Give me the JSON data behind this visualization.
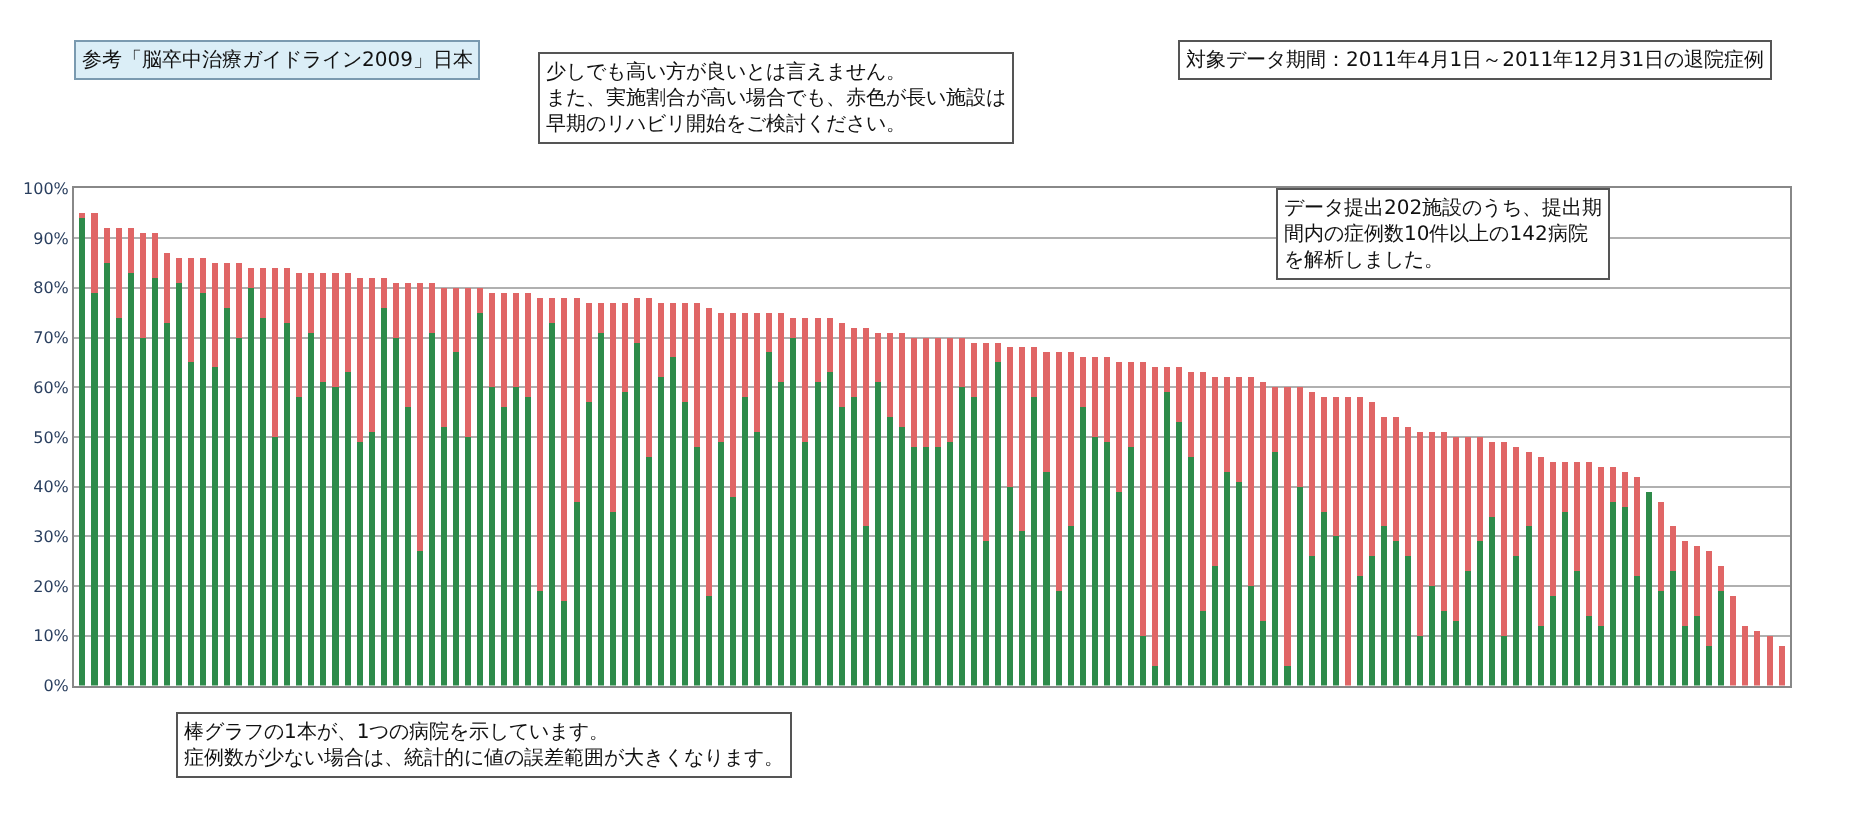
{
  "chart_data": {
    "type": "bar",
    "stacked": true,
    "categories": [
      null,
      null,
      null,
      null,
      null,
      null,
      null,
      null,
      null,
      null,
      null,
      null,
      null,
      null,
      null,
      null,
      null,
      null,
      null,
      null,
      null,
      null,
      null,
      null,
      null,
      null,
      null,
      null,
      null,
      null,
      null,
      null,
      null,
      null,
      null,
      null,
      null,
      null,
      null,
      null,
      null,
      null,
      null,
      null,
      null,
      null,
      null,
      null,
      null,
      null,
      null,
      null,
      null,
      null,
      null,
      null,
      null,
      null,
      null,
      null,
      null,
      null,
      null,
      null,
      null,
      null,
      null,
      null,
      null,
      null,
      null,
      null,
      null,
      null,
      null,
      null,
      null,
      null,
      null,
      null,
      null,
      null,
      null,
      null,
      null,
      null,
      null,
      null,
      null,
      null,
      null,
      null,
      null,
      null,
      null,
      null,
      null,
      null,
      null,
      null,
      null,
      null,
      null,
      null,
      null,
      null,
      null,
      null,
      null,
      null,
      null,
      null,
      null,
      null,
      null,
      null,
      null,
      null,
      null,
      null,
      null,
      null,
      null,
      null,
      null,
      null,
      null,
      null,
      null,
      null,
      null,
      null,
      null,
      null,
      null,
      null,
      null,
      null,
      null,
      null,
      null,
      null
    ],
    "series": [
      {
        "color": "#2e8b4a",
        "values": [
          94,
          79,
          85,
          74,
          83,
          70,
          82,
          73,
          81,
          65,
          79,
          64,
          76,
          70,
          80,
          74,
          50,
          73,
          58,
          71,
          61,
          60,
          63,
          49,
          51,
          76,
          70,
          56,
          27,
          71,
          52,
          67,
          50,
          75,
          60,
          56,
          60,
          58,
          19,
          73,
          17,
          37,
          57,
          71,
          35,
          59,
          69,
          46,
          62,
          66,
          57,
          48,
          18,
          49,
          38,
          58,
          51,
          67,
          61,
          70,
          49,
          61,
          63,
          56,
          58,
          32,
          61,
          54,
          52,
          48,
          48,
          48,
          49,
          60,
          58,
          29,
          65,
          40,
          31,
          58,
          43,
          19,
          32,
          56,
          50,
          49,
          39,
          48,
          10,
          4,
          59,
          53,
          46,
          15,
          24,
          43,
          41,
          20,
          13,
          47,
          4,
          40,
          26,
          35,
          30,
          0,
          22,
          26,
          32,
          29,
          26,
          10,
          20,
          15,
          13,
          23,
          29,
          34,
          10,
          26,
          32,
          12,
          18,
          35,
          23,
          14,
          12,
          37,
          36,
          22,
          39,
          19,
          23,
          12,
          14,
          8,
          19,
          0,
          0,
          0,
          0,
          0
        ]
      },
      {
        "color": "#e06666",
        "values": [
          1,
          16,
          7,
          18,
          9,
          21,
          9,
          14,
          5,
          21,
          7,
          21,
          9,
          15,
          4,
          10,
          34,
          11,
          25,
          12,
          22,
          23,
          20,
          33,
          31,
          6,
          11,
          25,
          54,
          10,
          28,
          13,
          30,
          5,
          19,
          23,
          19,
          21,
          59,
          5,
          61,
          41,
          20,
          6,
          42,
          18,
          9,
          32,
          15,
          11,
          20,
          29,
          58,
          26,
          37,
          17,
          24,
          8,
          14,
          4,
          25,
          13,
          11,
          17,
          14,
          40,
          10,
          17,
          19,
          22,
          22,
          22,
          21,
          10,
          11,
          40,
          4,
          28,
          37,
          10,
          24,
          48,
          35,
          10,
          16,
          17,
          26,
          17,
          55,
          60,
          5,
          11,
          17,
          48,
          38,
          19,
          21,
          42,
          48,
          13,
          56,
          20,
          33,
          23,
          28,
          58,
          36,
          31,
          22,
          25,
          26,
          41,
          31,
          36,
          37,
          27,
          21,
          15,
          39,
          22,
          15,
          34,
          27,
          10,
          22,
          31,
          32,
          7,
          7,
          20,
          0,
          18,
          9,
          17,
          14,
          19,
          5,
          18,
          12,
          11,
          10,
          8
        ]
      }
    ],
    "ylim": [
      0,
      100
    ],
    "yticks": [
      {
        "value": 0,
        "label": "0%"
      },
      {
        "value": 10,
        "label": "10%"
      },
      {
        "value": 20,
        "label": "20%"
      },
      {
        "value": 30,
        "label": "30%"
      },
      {
        "value": 40,
        "label": "40%"
      },
      {
        "value": 50,
        "label": "50%"
      },
      {
        "value": 60,
        "label": "60%"
      },
      {
        "value": 70,
        "label": "70%"
      },
      {
        "value": 80,
        "label": "80%"
      },
      {
        "value": 90,
        "label": "90%"
      },
      {
        "value": 100,
        "label": "100%"
      }
    ],
    "grid": "y",
    "tick_labels": "y",
    "annotations": [
      "参考「脳卒中治療ガイドライン2009」日本",
      "少しでも高い方が良いとは言えません。また、実施割合が高い場合でも、赤色が長い施設は早期のリハビリ開始をご検討ください。",
      "対象データ期間：2011年4月1日～2011年12月31日の退院症例",
      "データ提出202施設のうち、提出期間内の症例数10件以上の142病院を解析しました。",
      "棒グラフの1本が、1つの病院を示しています。症例数が少ない場合は、統計的に値の誤差範囲が大きくなります。"
    ]
  }
}
